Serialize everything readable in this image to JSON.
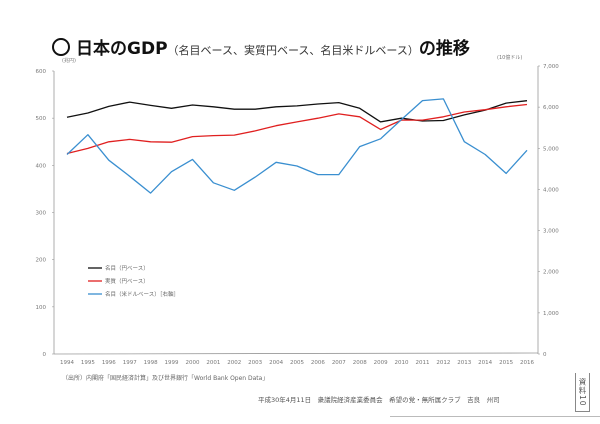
{
  "page": {
    "title_main_pre": "日本のGDP",
    "title_sub": "（名目ベース、実質円ベース、名目米ドルベース）",
    "title_main_post": "の推移",
    "source": "（出所）内閣府「国民経済計算」及び世界銀行「World Bank Open Data」",
    "footer": "平成30年4月11日　衆議院経済産業委員会　希望の党・無所属クラブ　吉良　州司",
    "stamp": "資料10"
  },
  "chart_data": {
    "type": "line",
    "title": "日本のGDP（名目ベース、実質円ベース、名目米ドルベース）の推移",
    "xlabel": "",
    "ylabel": "(兆円)",
    "y2label": "(10億ドル)",
    "x": [
      "1994",
      "1995",
      "1996",
      "1997",
      "1998",
      "1999",
      "2000",
      "2001",
      "2002",
      "2003",
      "2004",
      "2005",
      "2006",
      "2007",
      "2008",
      "2009",
      "2010",
      "2011",
      "2012",
      "2013",
      "2014",
      "2015",
      "2016"
    ],
    "ylim": [
      0,
      600
    ],
    "yticks": [
      "0",
      "100",
      "200",
      "300",
      "400",
      "500",
      "600"
    ],
    "y2lim": [
      0,
      7000
    ],
    "y2ticks": [
      "0",
      "1,000",
      "2,000",
      "3,000",
      "4,000",
      "5,000",
      "6,000",
      "7,000"
    ],
    "grid": false,
    "legend_position": "center-left",
    "series": [
      {
        "name": "名目（円ベース）",
        "axis": "left",
        "color": "#111111",
        "values": [
          502,
          511,
          525,
          534,
          527,
          521,
          528,
          524,
          519,
          519,
          524,
          526,
          530,
          533,
          521,
          492,
          500,
          494,
          495,
          507,
          517,
          532,
          537
        ]
      },
      {
        "name": "実質（円ベース）",
        "axis": "left",
        "color": "#e02020",
        "values": [
          425,
          436,
          450,
          455,
          450,
          449,
          461,
          463,
          464,
          473,
          484,
          492,
          500,
          509,
          503,
          476,
          496,
          496,
          503,
          513,
          518,
          524,
          529
        ]
      },
      {
        "name": "名目（米ドルベース）［右軸］",
        "axis": "right",
        "color": "#3a8fd0",
        "values": [
          4850,
          5330,
          4710,
          4320,
          3910,
          4430,
          4730,
          4160,
          3980,
          4300,
          4660,
          4570,
          4360,
          4360,
          5040,
          5230,
          5700,
          6160,
          6200,
          5160,
          4850,
          4390,
          4950
        ]
      }
    ]
  }
}
